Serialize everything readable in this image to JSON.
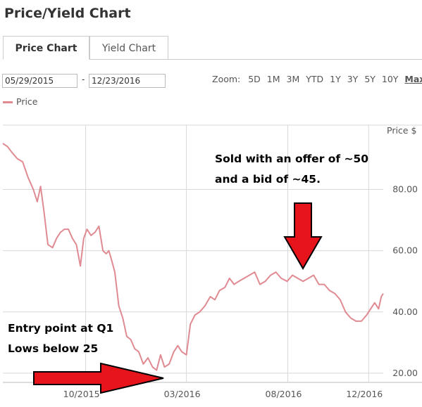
{
  "page_title": "Price/Yield Chart",
  "tabs": [
    {
      "label": "Price Chart",
      "active": true
    },
    {
      "label": "Yield Chart",
      "active": false
    }
  ],
  "date_range": {
    "from": "05/29/2015",
    "separator": "-",
    "to": "12/23/2016"
  },
  "zoom": {
    "label": "Zoom:",
    "options": [
      "5D",
      "1M",
      "3M",
      "YTD",
      "1Y",
      "3Y",
      "5Y",
      "10Y",
      "Max"
    ],
    "active": "Max"
  },
  "colors": {
    "price_line": "#e08a92",
    "grid": "#d8d8d8",
    "arrow": "#e8141c"
  },
  "chart_data": {
    "type": "line",
    "y_axis_title": "Price $",
    "ylim": [
      17,
      101
    ],
    "y_ticks": [
      "80.00",
      "60.00",
      "40.00",
      "20.00"
    ],
    "x_ticks": [
      "10/2015",
      "03/2016",
      "08/2016",
      "12/2016"
    ],
    "xlim": [
      "2015-05-29",
      "2016-12-23"
    ],
    "grid": true,
    "legend": {
      "position": "top-left",
      "entries": [
        "Price"
      ]
    },
    "series": [
      {
        "name": "Price",
        "x": [
          "2015-05-29",
          "2015-06-05",
          "2015-06-12",
          "2015-06-20",
          "2015-06-28",
          "2015-07-06",
          "2015-07-14",
          "2015-07-20",
          "2015-07-25",
          "2015-07-30",
          "2015-08-05",
          "2015-08-12",
          "2015-08-18",
          "2015-08-24",
          "2015-08-30",
          "2015-09-05",
          "2015-09-11",
          "2015-09-17",
          "2015-09-23",
          "2015-09-28",
          "2015-10-03",
          "2015-10-09",
          "2015-10-15",
          "2015-10-21",
          "2015-10-27",
          "2015-11-01",
          "2015-11-05",
          "2015-11-09",
          "2015-11-14",
          "2015-11-20",
          "2015-11-26",
          "2015-12-02",
          "2015-12-08",
          "2015-12-14",
          "2015-12-20",
          "2015-12-27",
          "2016-01-03",
          "2016-01-10",
          "2016-01-16",
          "2016-01-22",
          "2016-01-28",
          "2016-02-04",
          "2016-02-11",
          "2016-02-17",
          "2016-02-23",
          "2016-03-01",
          "2016-03-07",
          "2016-03-14",
          "2016-03-21",
          "2016-03-29",
          "2016-04-06",
          "2016-04-13",
          "2016-04-20",
          "2016-04-28",
          "2016-05-05",
          "2016-05-12",
          "2016-05-19",
          "2016-05-27",
          "2016-06-04",
          "2016-06-12",
          "2016-06-20",
          "2016-06-28",
          "2016-07-06",
          "2016-07-14",
          "2016-07-22",
          "2016-07-31",
          "2016-08-08",
          "2016-08-16",
          "2016-08-24",
          "2016-09-01",
          "2016-09-09",
          "2016-09-17",
          "2016-09-25",
          "2016-10-03",
          "2016-10-11",
          "2016-10-19",
          "2016-10-27",
          "2016-11-04",
          "2016-11-12",
          "2016-11-20",
          "2016-11-28",
          "2016-12-04",
          "2016-12-10",
          "2016-12-16",
          "2016-12-20",
          "2016-12-23"
        ],
        "values": [
          95,
          94,
          92,
          90,
          89,
          84,
          80,
          76,
          81,
          73,
          62,
          61,
          64,
          66,
          67,
          67,
          64,
          62,
          55,
          64,
          67,
          65,
          66,
          68,
          60,
          59,
          60,
          57,
          53,
          42,
          38,
          32,
          31,
          28,
          27,
          23,
          25,
          22,
          21,
          26,
          22,
          23,
          27,
          29,
          27,
          26,
          36,
          39,
          40,
          42,
          45,
          44,
          47,
          48,
          51,
          49,
          50,
          51,
          52,
          53,
          49,
          50,
          52,
          53,
          51,
          50,
          52,
          51,
          50,
          51,
          52,
          49,
          49,
          47,
          46,
          44,
          40,
          38,
          37,
          37,
          39,
          41,
          43,
          41,
          45,
          46
        ]
      }
    ],
    "annotations": [
      {
        "lines": [
          "Sold with an offer of ~50",
          "and a bid of ~45."
        ]
      },
      {
        "lines": [
          "Entry point at Q1",
          "Lows below 25"
        ]
      }
    ]
  }
}
